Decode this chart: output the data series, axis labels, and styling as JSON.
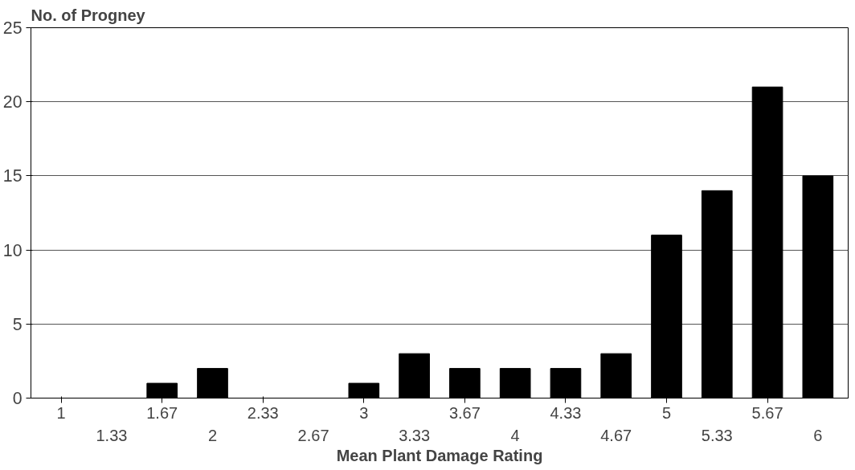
{
  "chart_data": {
    "type": "bar",
    "ylabel": "No. of Progney",
    "xlabel": "Mean Plant Damage Rating",
    "categories": [
      "1",
      "1.33",
      "1.67",
      "2",
      "2.33",
      "2.67",
      "3",
      "3.33",
      "3.67",
      "4",
      "4.33",
      "4.67",
      "5",
      "5.33",
      "5.67",
      "6"
    ],
    "values": [
      0,
      0,
      1,
      2,
      0,
      0,
      1,
      3,
      2,
      2,
      2,
      3,
      11,
      14,
      21,
      15
    ],
    "color": "#000000",
    "ylim": [
      0,
      25
    ],
    "yticks": [
      0,
      5,
      10,
      15,
      20,
      25
    ],
    "grid": "y"
  }
}
